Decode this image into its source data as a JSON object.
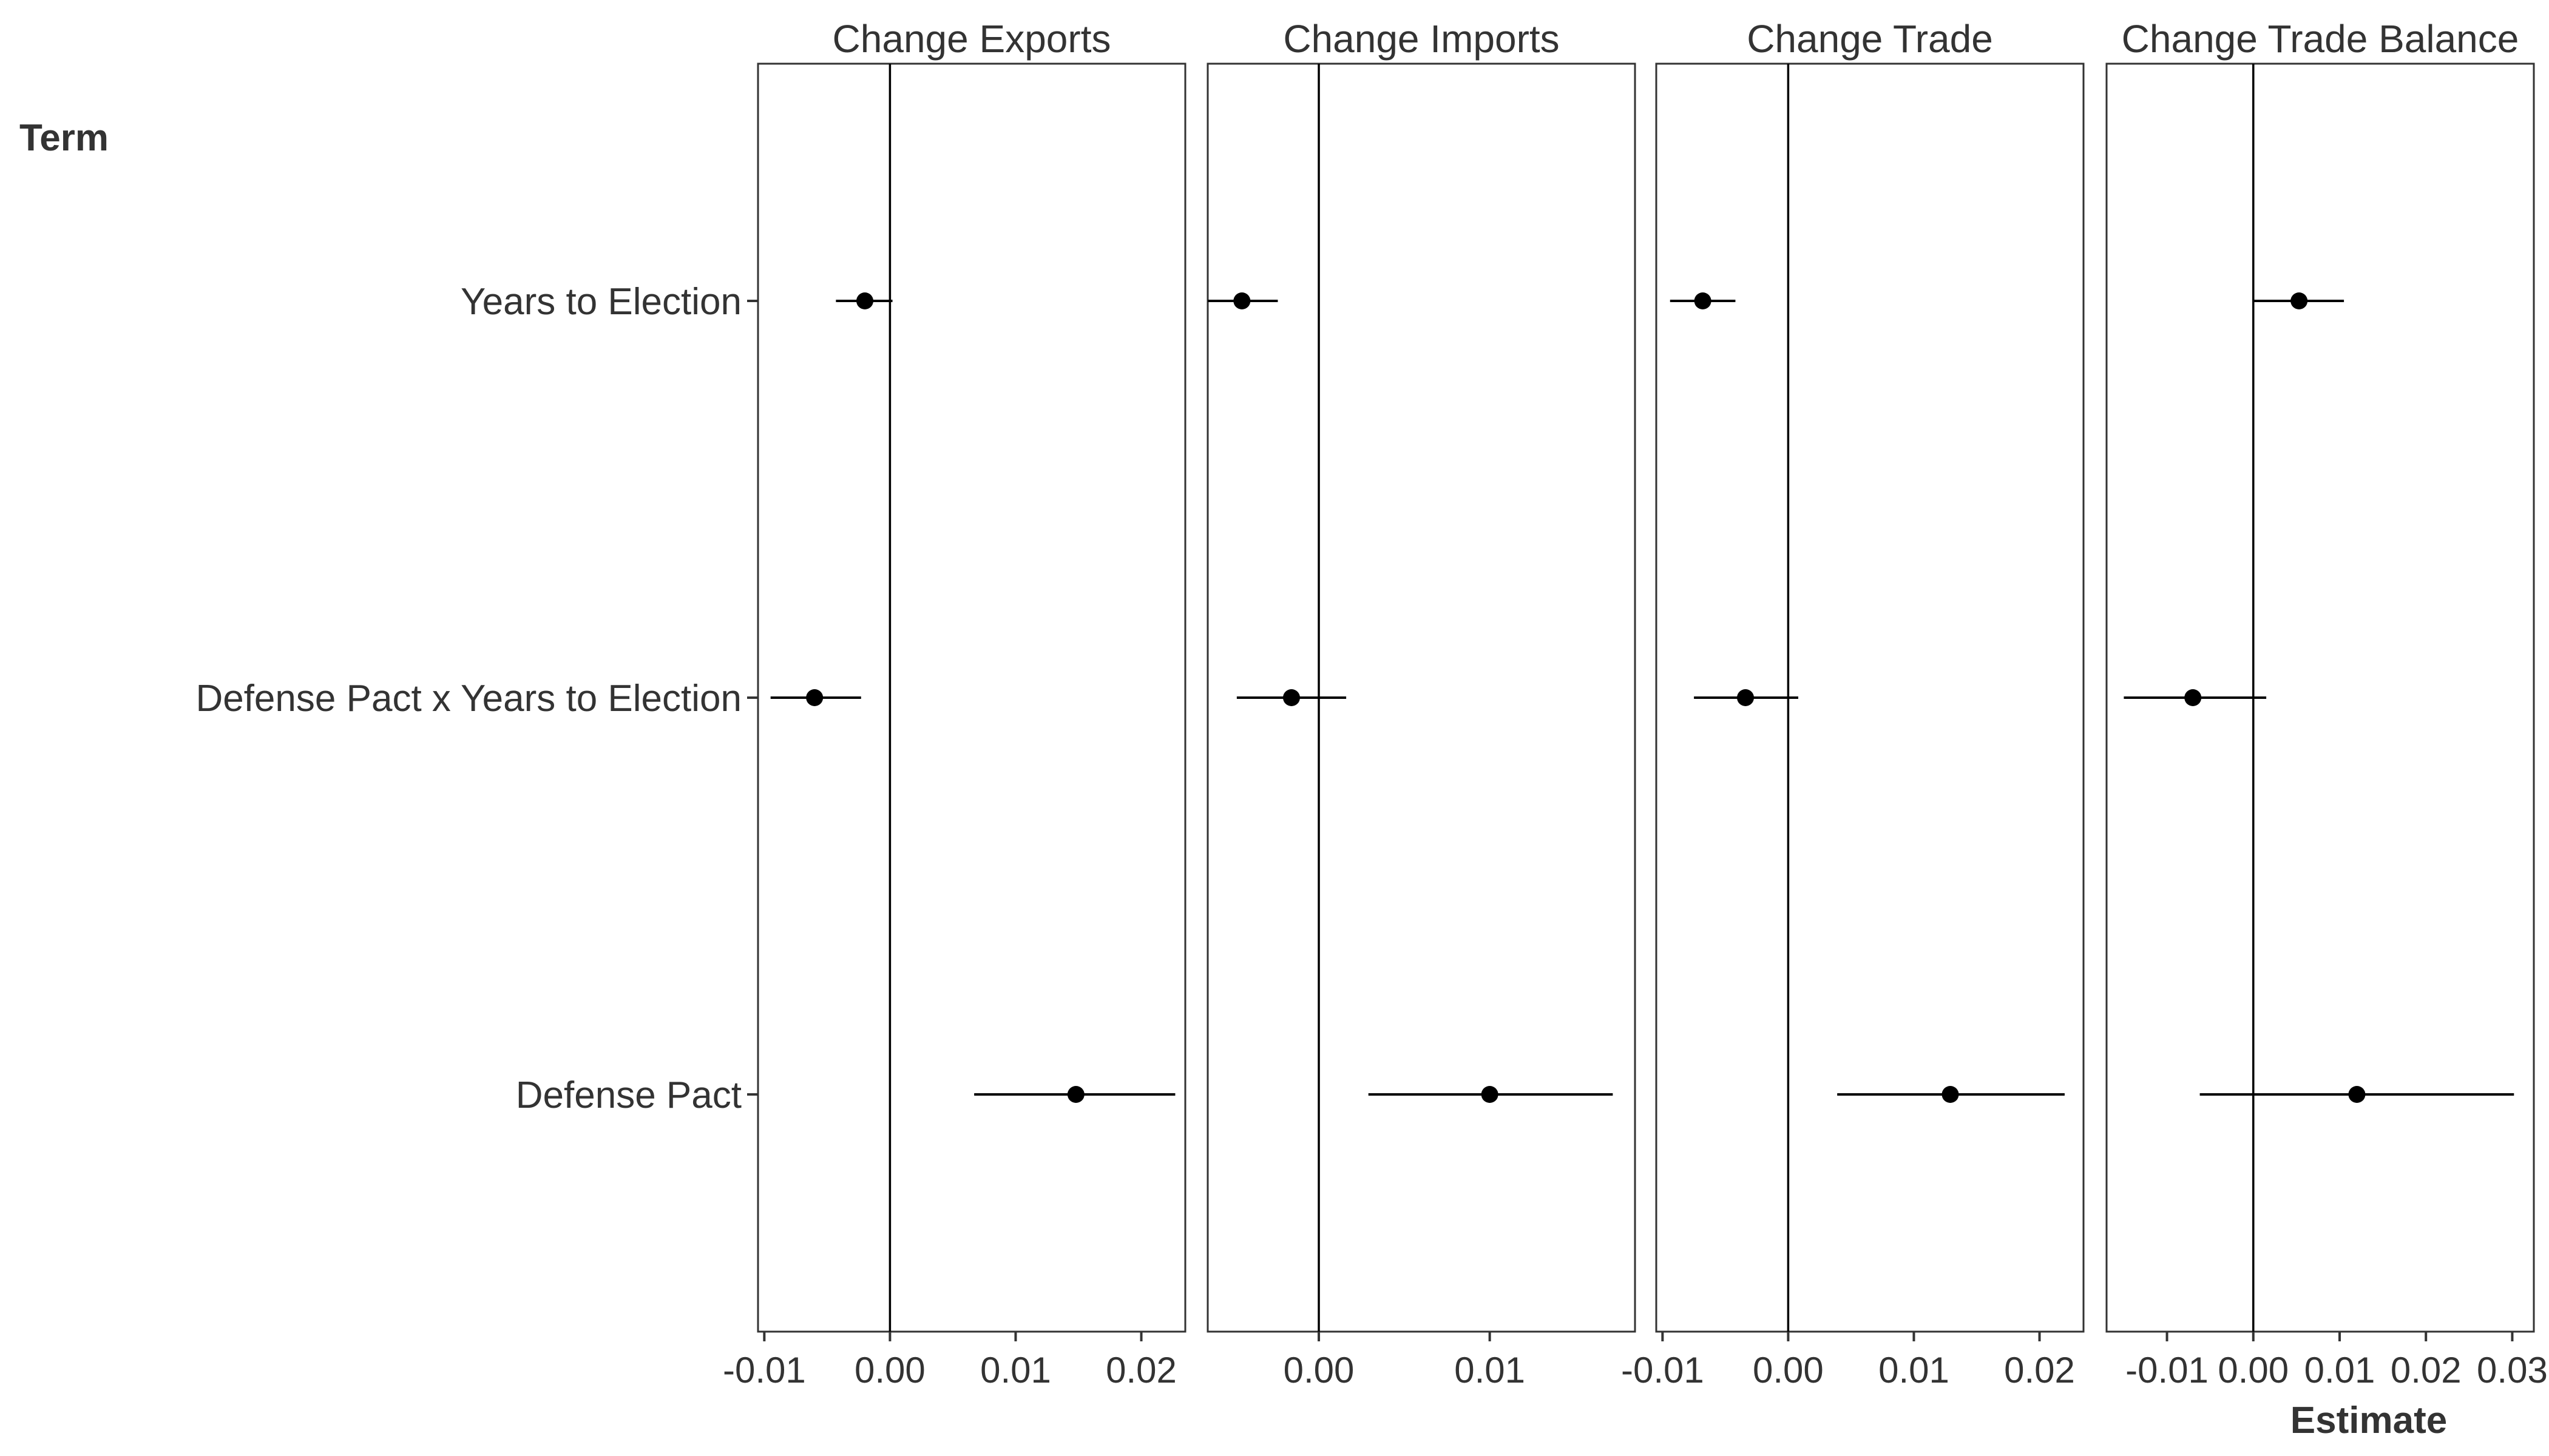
{
  "chart_data": {
    "type": "scatter",
    "subtype": "coefficient-plot-with-confidence-intervals",
    "y_axis_title": "Term",
    "x_axis_title": "Estimate",
    "terms": [
      "Years to Election",
      "Defense Pact x Years to Election",
      "Defense Pact"
    ],
    "reference_line": 0,
    "grid": false,
    "panels": [
      {
        "title": "Change Exports",
        "xlim": [
          -0.0105,
          0.0235
        ],
        "ticks": [
          -0.01,
          0.0,
          0.01,
          0.02
        ],
        "tick_labels": [
          "-0.01",
          "0.00",
          "0.01",
          "0.02"
        ],
        "points": [
          {
            "term": "Years to Election",
            "estimate": -0.002,
            "ci": [
              -0.0043,
              0.0002
            ]
          },
          {
            "term": "Defense Pact x Years to Election",
            "estimate": -0.006,
            "ci": [
              -0.0095,
              -0.0023
            ]
          },
          {
            "term": "Defense Pact",
            "estimate": 0.0148,
            "ci": [
              0.0067,
              0.0227
            ]
          }
        ]
      },
      {
        "title": "Change Imports",
        "xlim": [
          -0.0065,
          0.0185
        ],
        "ticks": [
          0.0,
          0.01
        ],
        "tick_labels": [
          "0.00",
          "0.01"
        ],
        "points": [
          {
            "term": "Years to Election",
            "estimate": -0.0045,
            "ci": [
              -0.0065,
              -0.0024
            ]
          },
          {
            "term": "Defense Pact x Years to Election",
            "estimate": -0.0016,
            "ci": [
              -0.0048,
              0.0016
            ]
          },
          {
            "term": "Defense Pact",
            "estimate": 0.01,
            "ci": [
              0.0029,
              0.0172
            ]
          }
        ]
      },
      {
        "title": "Change Trade",
        "xlim": [
          -0.0105,
          0.0235
        ],
        "ticks": [
          -0.01,
          0.0,
          0.01,
          0.02
        ],
        "tick_labels": [
          "-0.01",
          "0.00",
          "0.01",
          "0.02"
        ],
        "points": [
          {
            "term": "Years to Election",
            "estimate": -0.0068,
            "ci": [
              -0.0094,
              -0.0042
            ]
          },
          {
            "term": "Defense Pact x Years to Election",
            "estimate": -0.0034,
            "ci": [
              -0.0075,
              0.0008
            ]
          },
          {
            "term": "Defense Pact",
            "estimate": 0.0129,
            "ci": [
              0.0039,
              0.022
            ]
          }
        ]
      },
      {
        "title": "Change Trade Balance",
        "xlim": [
          -0.017,
          0.0325
        ],
        "ticks": [
          -0.01,
          0.0,
          0.01,
          0.02,
          0.03
        ],
        "tick_labels": [
          "-0.01",
          "0.00",
          "0.01",
          "0.02",
          "0.03"
        ],
        "points": [
          {
            "term": "Years to Election",
            "estimate": 0.0053,
            "ci": [
              0.0,
              0.0105
            ]
          },
          {
            "term": "Defense Pact x Years to Election",
            "estimate": -0.007,
            "ci": [
              -0.015,
              0.0015
            ]
          },
          {
            "term": "Defense Pact",
            "estimate": 0.012,
            "ci": [
              -0.0062,
              0.0302
            ]
          }
        ]
      }
    ],
    "colors": {
      "points": "#000000",
      "text": "#333333",
      "panel_border": "#333333"
    }
  }
}
